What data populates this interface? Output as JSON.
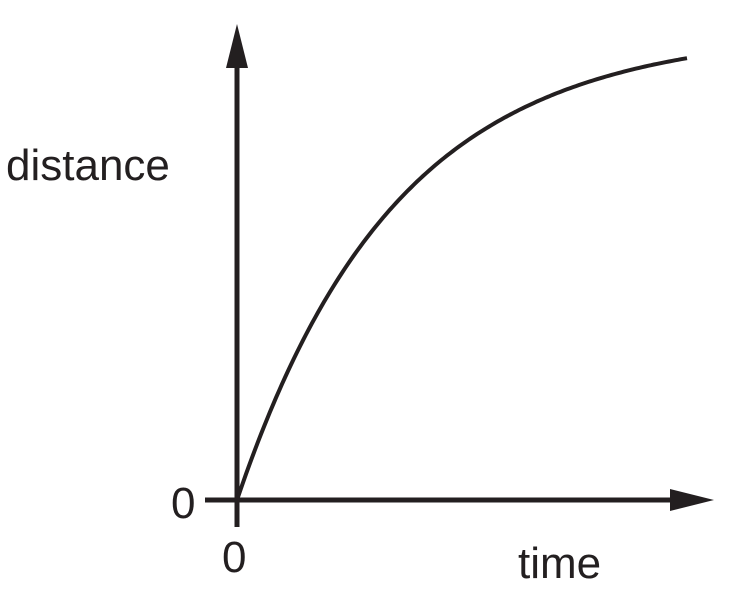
{
  "chart_data": {
    "type": "line",
    "title": "",
    "xlabel": "time",
    "ylabel": "distance",
    "x_tick_labels": [
      "0"
    ],
    "y_tick_labels": [
      "0"
    ],
    "grid": false,
    "series": [
      {
        "x": [
          0,
          0.1,
          0.2,
          0.3,
          0.4,
          0.5,
          0.6,
          0.7,
          0.8,
          0.9,
          1.0
        ],
        "values": [
          0,
          0.27,
          0.47,
          0.62,
          0.73,
          0.81,
          0.87,
          0.91,
          0.95,
          0.97,
          1.0
        ]
      }
    ],
    "colors": {
      "ink": "#231f20"
    }
  }
}
